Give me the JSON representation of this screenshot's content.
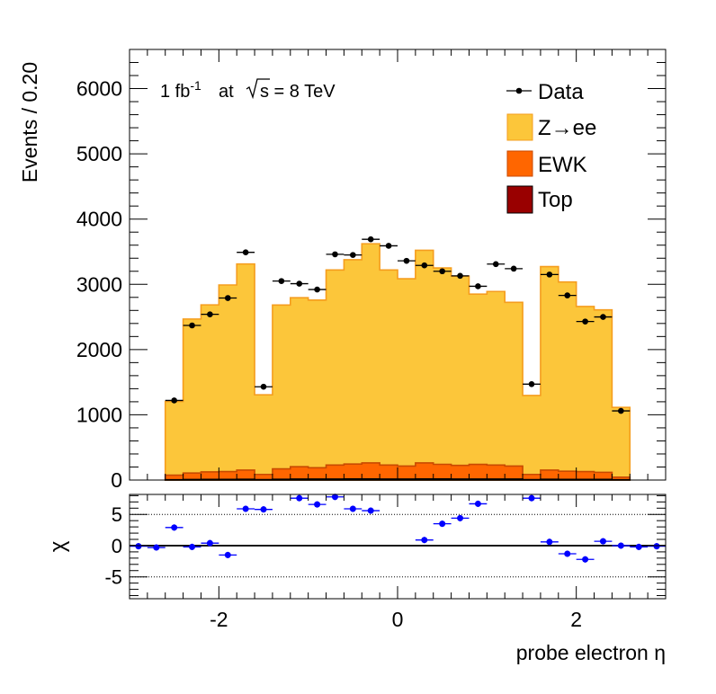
{
  "chart_data": [
    {
      "type": "bar",
      "panel": "main",
      "ylabel": "Events / 0.20",
      "annotation": {
        "lumi_prefix": "1 fb",
        "lumi_exp": "-1",
        "at": "at",
        "sqrt_s": "s = 8 TeV"
      },
      "xlim": [
        -3.0,
        3.0
      ],
      "ylim": [
        0,
        6600
      ],
      "yticks": [
        0,
        1000,
        2000,
        3000,
        4000,
        5000,
        6000
      ],
      "ytick_labels": [
        "0",
        "1000",
        "2000",
        "3000",
        "4000",
        "5000",
        "6000"
      ],
      "bin_edges": [
        -2.6,
        -2.4,
        -2.2,
        -2.0,
        -1.8,
        -1.6,
        -1.4,
        -1.2,
        -1.0,
        -0.8,
        -0.6,
        -0.4,
        -0.2,
        0.0,
        0.2,
        0.4,
        0.6,
        0.8,
        1.0,
        1.2,
        1.4,
        1.6,
        1.8,
        2.0,
        2.2,
        2.4,
        2.6
      ],
      "legend_position": "top-right",
      "legend": [
        {
          "key": "data",
          "label": "Data"
        },
        {
          "key": "zee",
          "label": "Z→ee"
        },
        {
          "key": "ewk",
          "label": "EWK"
        },
        {
          "key": "top",
          "label": "Top"
        }
      ],
      "series": [
        {
          "key": "zee",
          "color": "#fcc63a",
          "edge": "#f59d1e",
          "values": [
            1130,
            2360,
            2560,
            2860,
            3160,
            1220,
            2510,
            2590,
            2570,
            2990,
            3130,
            3360,
            2990,
            2870,
            3260,
            3010,
            2900,
            2610,
            2660,
            2510,
            1210,
            3120,
            2900,
            2530,
            2490,
            1070
          ]
        },
        {
          "key": "ewk",
          "color": "#ff6600",
          "edge": "#c84a00",
          "values": [
            70,
            100,
            115,
            120,
            140,
            80,
            160,
            190,
            175,
            215,
            230,
            245,
            215,
            200,
            245,
            225,
            210,
            225,
            215,
            200,
            80,
            140,
            125,
            120,
            110,
            40
          ]
        },
        {
          "key": "top",
          "color": "#990000",
          "edge": "#000000",
          "values": [
            5,
            8,
            10,
            10,
            12,
            6,
            12,
            14,
            14,
            15,
            16,
            17,
            15,
            15,
            17,
            16,
            15,
            15,
            15,
            14,
            6,
            12,
            10,
            10,
            9,
            4
          ]
        }
      ],
      "data": {
        "x": [
          -2.5,
          -2.3,
          -2.1,
          -1.9,
          -1.7,
          -1.5,
          -1.3,
          -1.1,
          -0.9,
          -0.7,
          -0.5,
          -0.3,
          -0.1,
          0.1,
          0.3,
          0.5,
          0.7,
          0.9,
          1.1,
          1.3,
          1.5,
          1.7,
          1.9,
          2.1,
          2.3,
          2.5
        ],
        "y": [
          1220,
          2370,
          2540,
          2790,
          3490,
          1430,
          3050,
          3010,
          2920,
          3460,
          3450,
          3690,
          3590,
          3360,
          3290,
          3200,
          3130,
          2970,
          3310,
          3240,
          1470,
          3150,
          2830,
          2430,
          2500,
          1060
        ],
        "color": "#000000"
      }
    },
    {
      "type": "scatter",
      "panel": "ratio",
      "xlabel": "probe electron η",
      "ylabel": "χ",
      "xlim": [
        -3.0,
        3.0
      ],
      "ylim": [
        -8.5,
        8.2
      ],
      "xticks": [
        -2,
        0,
        2
      ],
      "xtick_labels": [
        "-2",
        "0",
        "2"
      ],
      "yticks": [
        -5,
        0,
        5
      ],
      "ytick_labels": [
        "-5",
        "0",
        "5"
      ],
      "x": [
        -2.9,
        -2.7,
        -2.5,
        -2.3,
        -2.1,
        -1.9,
        -1.7,
        -1.5,
        -1.1,
        -0.9,
        -0.7,
        -0.5,
        -0.3,
        0.3,
        0.5,
        0.7,
        0.9,
        1.5,
        1.7,
        1.9,
        2.1,
        2.3,
        2.5,
        2.7,
        2.9
      ],
      "y": [
        -0.1,
        -0.3,
        2.9,
        -0.2,
        0.4,
        -1.5,
        5.9,
        5.8,
        7.6,
        6.6,
        7.8,
        5.9,
        5.6,
        0.9,
        3.5,
        4.4,
        6.7,
        7.6,
        0.6,
        -1.3,
        -2.2,
        0.7,
        0.0,
        -0.2,
        -0.1
      ],
      "y_err": 0.5,
      "x_err": 0.1,
      "color": "#0000ff"
    }
  ]
}
